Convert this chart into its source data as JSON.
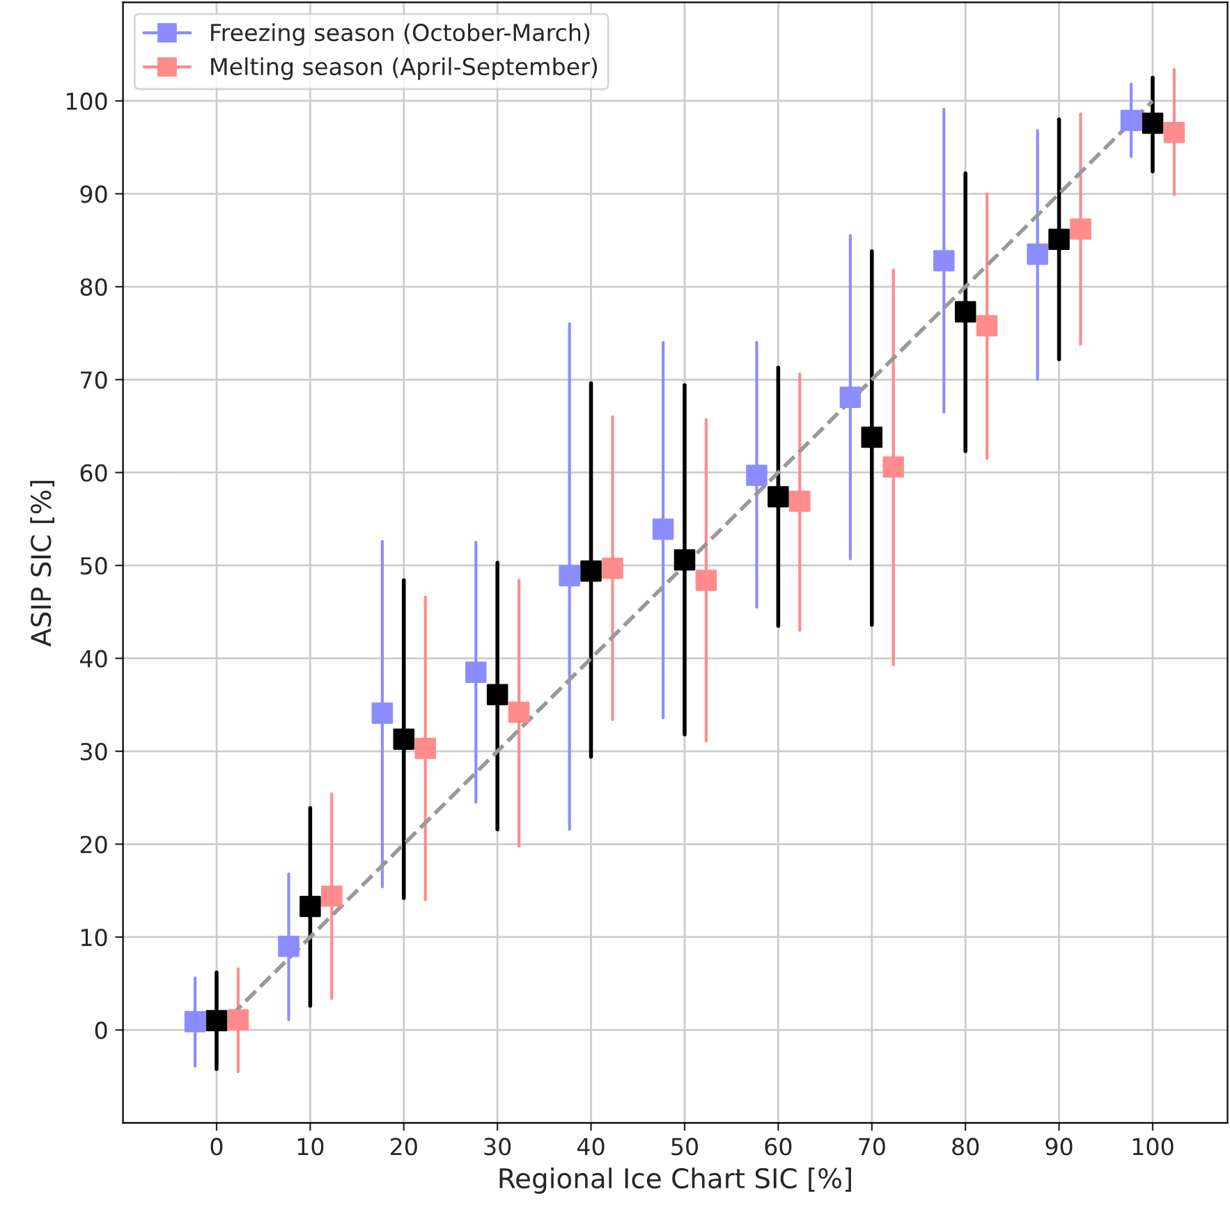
{
  "chart_data": {
    "type": "scatter",
    "xlabel": "Regional Ice Chart SIC [%]",
    "ylabel": "ASIP SIC [%]",
    "xlim": [
      -10,
      108
    ],
    "ylim": [
      -10,
      110.6
    ],
    "xticks": [
      0,
      10,
      20,
      30,
      40,
      50,
      60,
      70,
      80,
      90,
      100
    ],
    "yticks": [
      0,
      10,
      20,
      30,
      40,
      50,
      60,
      70,
      80,
      90,
      100
    ],
    "grid": true,
    "legend": "top left",
    "marker": "square",
    "series": [
      {
        "name": "Freezing season (October-March)",
        "color": "#8c8cff",
        "x": [
          -2.3,
          7.7,
          17.7,
          27.7,
          37.7,
          47.7,
          57.7,
          67.7,
          77.7,
          87.7,
          97.7
        ],
        "values": [
          0.9,
          9.0,
          34.1,
          38.5,
          48.9,
          53.9,
          59.7,
          68.1,
          82.8,
          83.5,
          97.9
        ],
        "errors": [
          [
            -3.9,
            5.6
          ],
          [
            1.1,
            16.8
          ],
          [
            15.4,
            52.6
          ],
          [
            24.5,
            52.5
          ],
          [
            21.6,
            76.0
          ],
          [
            33.6,
            74.0
          ],
          [
            45.5,
            74.0
          ],
          [
            50.7,
            85.5
          ],
          [
            66.5,
            99.1
          ],
          [
            70.0,
            96.8
          ],
          [
            94.0,
            101.8
          ]
        ]
      },
      {
        "name": "Melting season (April-September)",
        "color": "#ff8c8c",
        "x": [
          2.3,
          12.3,
          22.3,
          32.3,
          42.3,
          52.3,
          62.3,
          72.3,
          82.3,
          92.3,
          102.3
        ],
        "values": [
          1.1,
          14.4,
          30.3,
          34.2,
          49.7,
          48.4,
          56.9,
          60.6,
          75.8,
          86.2,
          96.6
        ],
        "errors": [
          [
            -4.5,
            6.6
          ],
          [
            3.4,
            25.4
          ],
          [
            14.0,
            46.6
          ],
          [
            19.8,
            48.4
          ],
          [
            33.4,
            66.0
          ],
          [
            31.1,
            65.7
          ],
          [
            43.0,
            70.6
          ],
          [
            39.3,
            81.8
          ],
          [
            61.5,
            90.0
          ],
          [
            73.8,
            98.6
          ],
          [
            89.9,
            103.4
          ]
        ]
      },
      {
        "color": "#000000",
        "x": [
          0,
          10,
          20,
          30,
          40,
          50,
          60,
          70,
          80,
          90,
          100
        ],
        "values": [
          1.0,
          13.3,
          31.3,
          36.1,
          49.4,
          50.6,
          57.4,
          63.8,
          77.3,
          85.1,
          97.6
        ],
        "errors": [
          [
            -4.2,
            6.2
          ],
          [
            2.6,
            23.9
          ],
          [
            14.2,
            48.4
          ],
          [
            21.6,
            50.3
          ],
          [
            29.4,
            69.6
          ],
          [
            31.8,
            69.4
          ],
          [
            43.5,
            71.3
          ],
          [
            43.6,
            83.8
          ],
          [
            62.3,
            92.2
          ],
          [
            72.2,
            98.0
          ],
          [
            92.4,
            102.5
          ]
        ]
      },
      {
        "type": "line",
        "color": "#999999",
        "line_style": "dashed",
        "marker": "none",
        "x": [
          0,
          100
        ],
        "values": [
          0,
          100
        ]
      }
    ]
  }
}
